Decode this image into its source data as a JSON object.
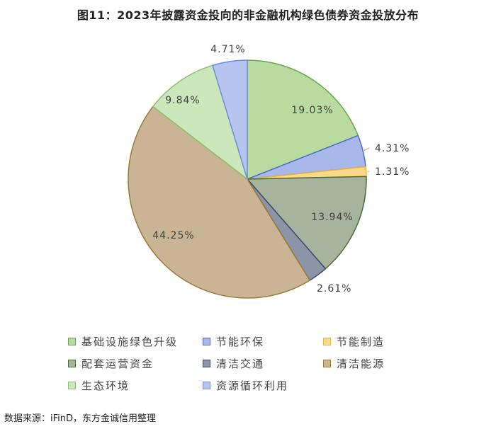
{
  "title": "图11：2023年披露资金投向的非金融机构绿色债券资金投放分布",
  "source": "数据来源：iFinD，东方金诚信用整理",
  "chart_data": {
    "type": "pie",
    "unit": "%",
    "legend_position": "bottom",
    "slices": [
      {
        "name": "基础设施绿色升级",
        "value": 19.03,
        "label": "19.03%",
        "fill": "#b9dba0",
        "stroke": "#6aa84f"
      },
      {
        "name": "节能环保",
        "value": 4.31,
        "label": "4.31%",
        "fill": "#a9b8ea",
        "stroke": "#4a6cd4"
      },
      {
        "name": "节能制造",
        "value": 1.31,
        "label": "1.31%",
        "fill": "#fbd98a",
        "stroke": "#e8b339"
      },
      {
        "name": "配套运营资金",
        "value": 13.94,
        "label": "13.94%",
        "fill": "#a6b49d",
        "stroke": "#4c6b35"
      },
      {
        "name": "清洁交通",
        "value": 2.61,
        "label": "2.61%",
        "fill": "#8c94a8",
        "stroke": "#3e4a6b"
      },
      {
        "name": "清洁能源",
        "value": 44.25,
        "label": "44.25%",
        "fill": "#c9b595",
        "stroke": "#9c7a36"
      },
      {
        "name": "生态环境",
        "value": 9.84,
        "label": "9.84%",
        "fill": "#cce7bc",
        "stroke": "#8cc26d"
      },
      {
        "name": "资源循环利用",
        "value": 4.71,
        "label": "4.71%",
        "fill": "#b6c5f0",
        "stroke": "#6e8fe0"
      }
    ]
  }
}
